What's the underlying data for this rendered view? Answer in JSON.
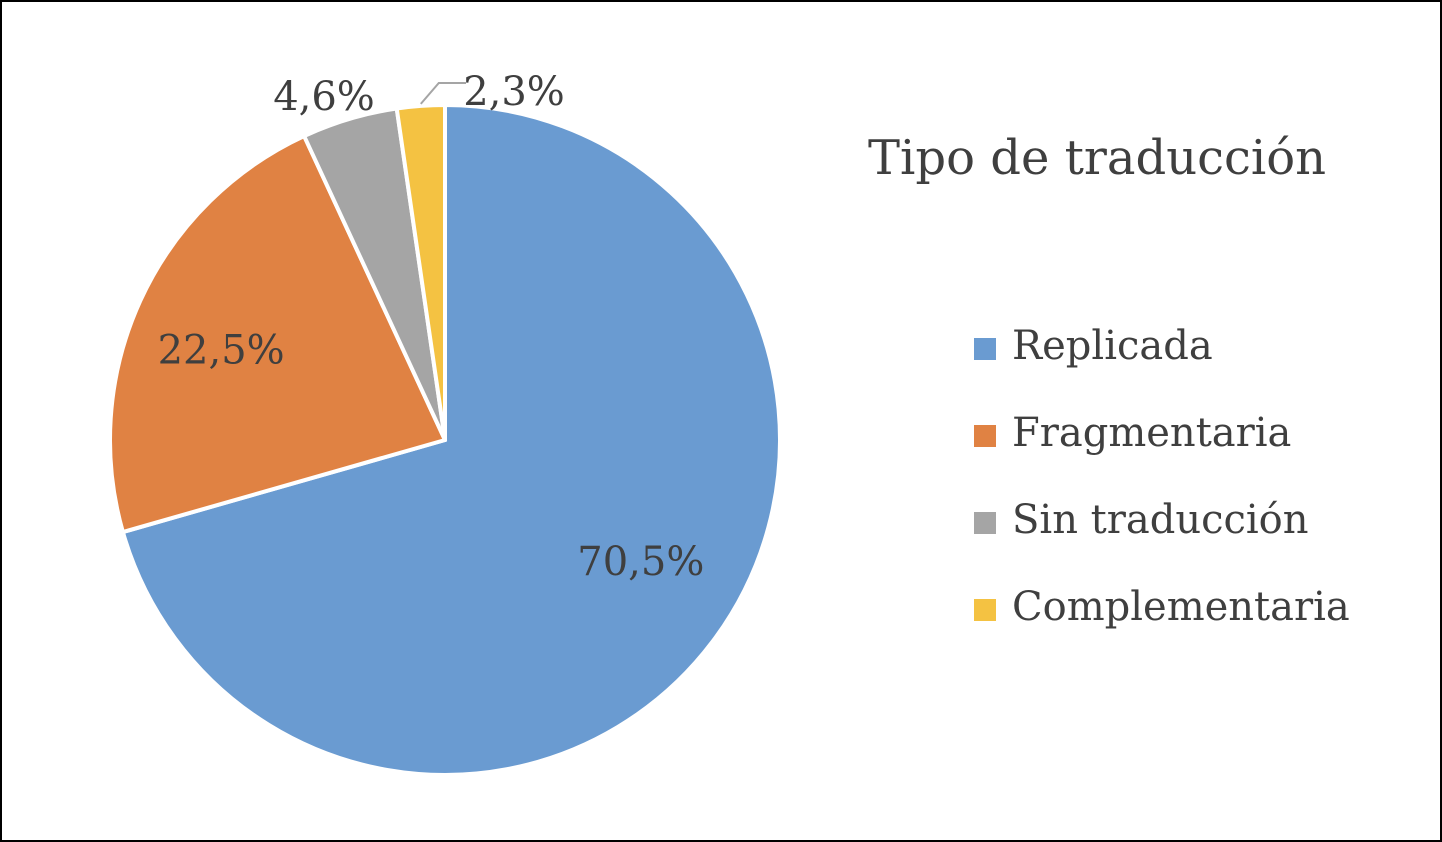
{
  "chart_data": {
    "type": "pie",
    "title": "Tipo de traducción",
    "categories": [
      "Replicada",
      "Fragmentaria",
      "Sin traducción",
      "Complementaria"
    ],
    "values": [
      70.5,
      22.5,
      4.6,
      2.3
    ],
    "data_labels": [
      "70,5%",
      "22,5%",
      "4,6%",
      "2,3%"
    ],
    "colors": [
      "#6a9bd1",
      "#e08243",
      "#a5a5a5",
      "#f4c242"
    ],
    "legend_position": "right"
  }
}
